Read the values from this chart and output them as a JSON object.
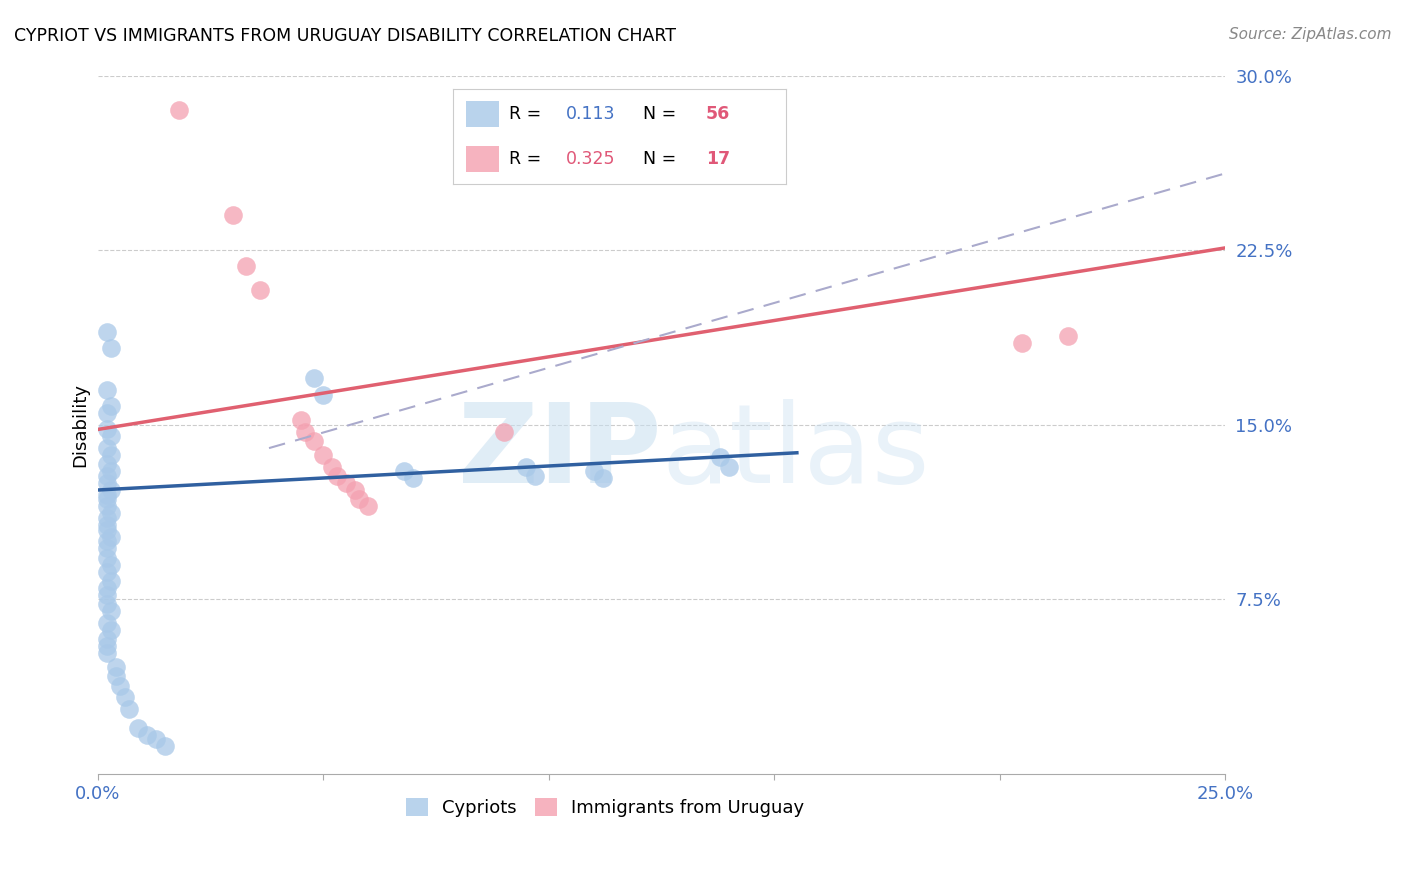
{
  "title": "CYPRIOT VS IMMIGRANTS FROM URUGUAY DISABILITY CORRELATION CHART",
  "source": "Source: ZipAtlas.com",
  "ylabel": "Disability",
  "watermark": "ZIPatlas",
  "xlim": [
    0.0,
    0.25
  ],
  "ylim": [
    0.0,
    0.3
  ],
  "legend_r1": "0.113",
  "legend_n1": "56",
  "legend_r2": "0.325",
  "legend_n2": "17",
  "cypriot_color": "#a8c8e8",
  "uruguay_color": "#f4a0b0",
  "cypriot_line_color": "#3060a0",
  "uruguay_line_color": "#e06070",
  "dashed_line_color": "#aaaacc",
  "background_color": "#ffffff",
  "cypriot_scatter": [
    [
      0.002,
      0.19
    ],
    [
      0.003,
      0.183
    ],
    [
      0.002,
      0.165
    ],
    [
      0.003,
      0.158
    ],
    [
      0.002,
      0.155
    ],
    [
      0.002,
      0.148
    ],
    [
      0.003,
      0.145
    ],
    [
      0.002,
      0.14
    ],
    [
      0.003,
      0.137
    ],
    [
      0.002,
      0.133
    ],
    [
      0.003,
      0.13
    ],
    [
      0.002,
      0.128
    ],
    [
      0.002,
      0.125
    ],
    [
      0.003,
      0.122
    ],
    [
      0.002,
      0.12
    ],
    [
      0.002,
      0.118
    ],
    [
      0.002,
      0.115
    ],
    [
      0.003,
      0.112
    ],
    [
      0.002,
      0.11
    ],
    [
      0.002,
      0.107
    ],
    [
      0.002,
      0.105
    ],
    [
      0.003,
      0.102
    ],
    [
      0.002,
      0.1
    ],
    [
      0.002,
      0.097
    ],
    [
      0.002,
      0.093
    ],
    [
      0.003,
      0.09
    ],
    [
      0.002,
      0.087
    ],
    [
      0.003,
      0.083
    ],
    [
      0.002,
      0.08
    ],
    [
      0.002,
      0.077
    ],
    [
      0.002,
      0.073
    ],
    [
      0.003,
      0.07
    ],
    [
      0.002,
      0.065
    ],
    [
      0.003,
      0.062
    ],
    [
      0.002,
      0.058
    ],
    [
      0.002,
      0.055
    ],
    [
      0.002,
      0.052
    ],
    [
      0.004,
      0.046
    ],
    [
      0.004,
      0.042
    ],
    [
      0.005,
      0.038
    ],
    [
      0.006,
      0.033
    ],
    [
      0.007,
      0.028
    ],
    [
      0.009,
      0.02
    ],
    [
      0.011,
      0.017
    ],
    [
      0.013,
      0.015
    ],
    [
      0.015,
      0.012
    ],
    [
      0.048,
      0.17
    ],
    [
      0.05,
      0.163
    ],
    [
      0.068,
      0.13
    ],
    [
      0.07,
      0.127
    ],
    [
      0.095,
      0.132
    ],
    [
      0.097,
      0.128
    ],
    [
      0.11,
      0.13
    ],
    [
      0.112,
      0.127
    ],
    [
      0.138,
      0.136
    ],
    [
      0.14,
      0.132
    ]
  ],
  "uruguay_scatter": [
    [
      0.018,
      0.285
    ],
    [
      0.03,
      0.24
    ],
    [
      0.033,
      0.218
    ],
    [
      0.036,
      0.208
    ],
    [
      0.045,
      0.152
    ],
    [
      0.046,
      0.147
    ],
    [
      0.048,
      0.143
    ],
    [
      0.05,
      0.137
    ],
    [
      0.052,
      0.132
    ],
    [
      0.053,
      0.128
    ],
    [
      0.055,
      0.125
    ],
    [
      0.057,
      0.122
    ],
    [
      0.058,
      0.118
    ],
    [
      0.06,
      0.115
    ],
    [
      0.09,
      0.147
    ],
    [
      0.205,
      0.185
    ],
    [
      0.215,
      0.188
    ]
  ],
  "cypriot_trend_x": [
    0.0,
    0.155
  ],
  "cypriot_trend_y": [
    0.122,
    0.138
  ],
  "uruguay_trend_x": [
    0.0,
    0.25
  ],
  "uruguay_trend_y": [
    0.148,
    0.226
  ],
  "dashed_trend_x": [
    0.038,
    0.25
  ],
  "dashed_trend_y": [
    0.14,
    0.258
  ]
}
